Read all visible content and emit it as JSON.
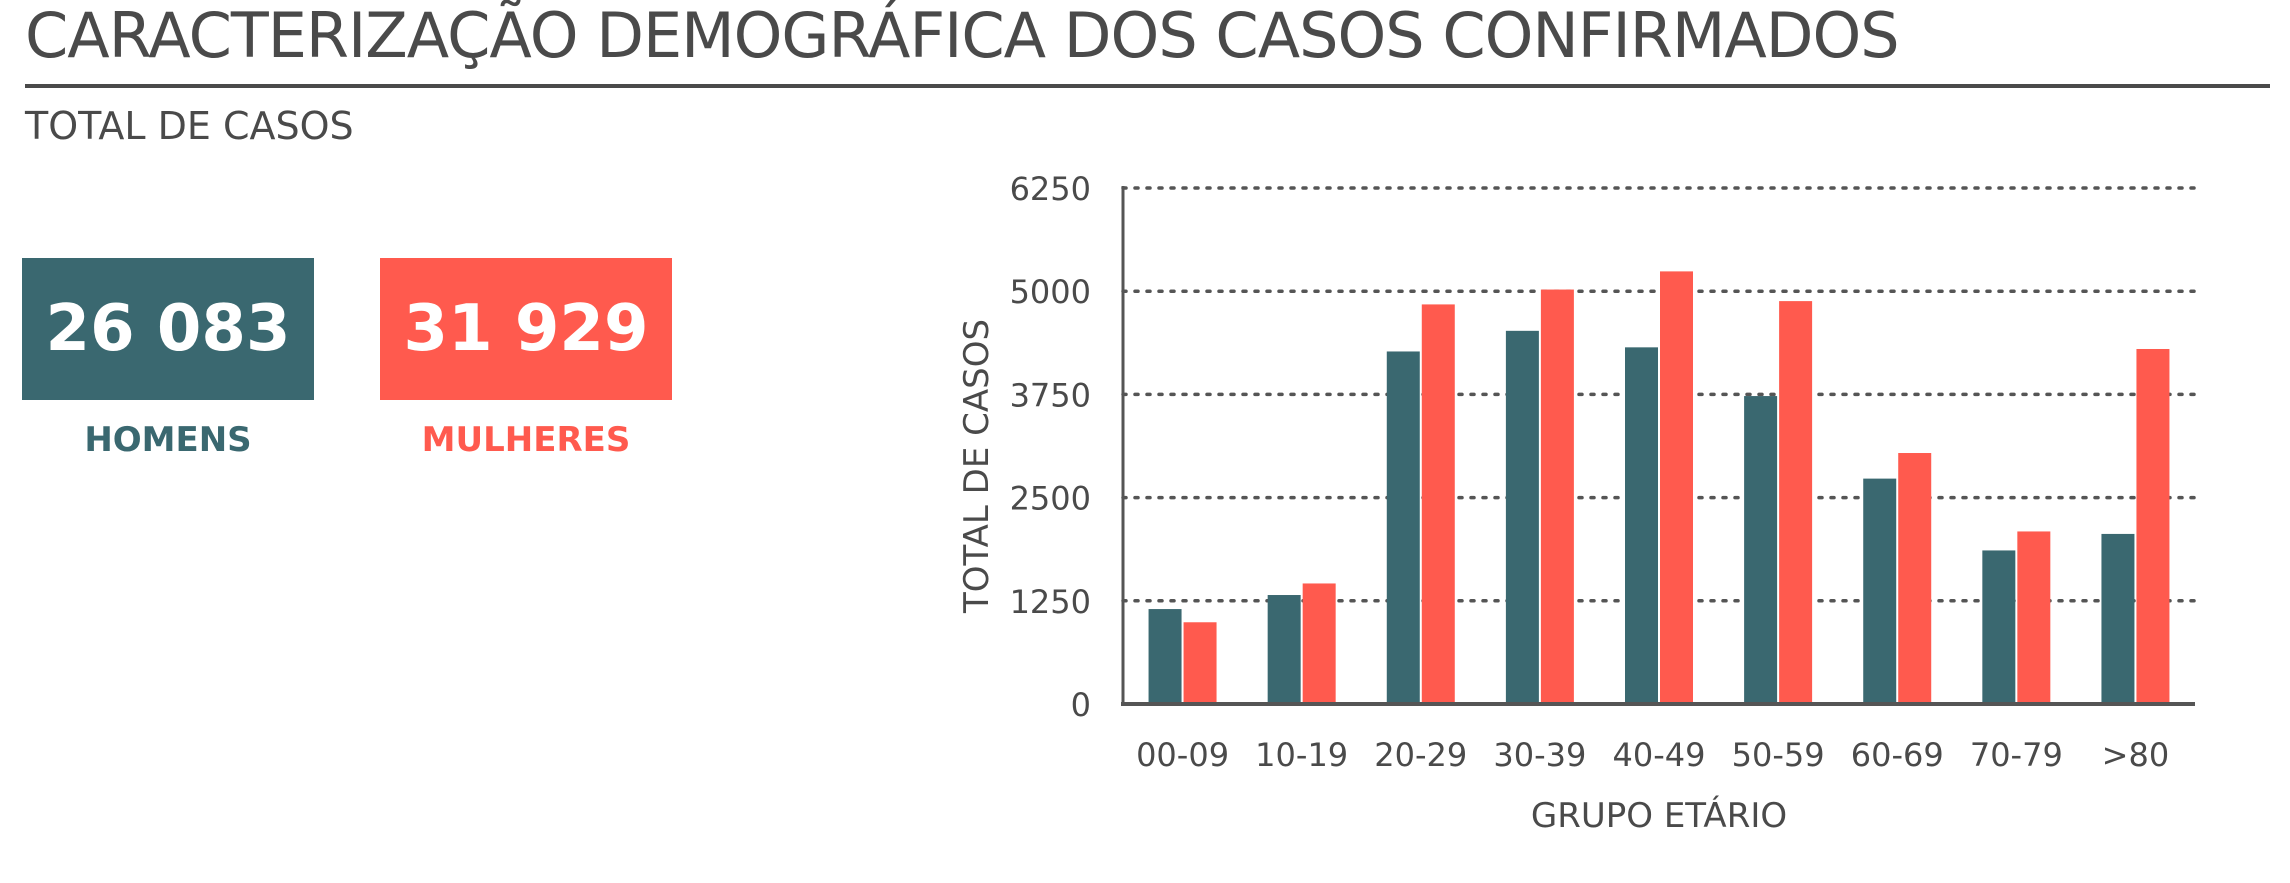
{
  "header": {
    "title": "CARACTERIZAÇÃO DEMOGRÁFICA DOS CASOS CONFIRMADOS",
    "subtitle": "TOTAL DE CASOS"
  },
  "kpis": {
    "men": {
      "value": "26 083",
      "label": "HOMENS",
      "color": "#3a6870"
    },
    "women": {
      "value": "31 929",
      "label": "MULHERES",
      "color": "#ff5a4e"
    }
  },
  "chart_data": {
    "type": "bar",
    "categories": [
      "00-09",
      "10-19",
      "20-29",
      "30-39",
      "40-49",
      "50-59",
      "60-69",
      "70-79",
      ">80"
    ],
    "series": [
      {
        "name": "HOMENS",
        "color": "#3a6870",
        "values": [
          1150,
          1320,
          4270,
          4520,
          4320,
          3730,
          2730,
          1860,
          2060
        ]
      },
      {
        "name": "MULHERES",
        "color": "#ff5a4e",
        "values": [
          990,
          1460,
          4840,
          5020,
          5240,
          4880,
          3040,
          2090,
          4300
        ]
      }
    ],
    "title": "",
    "xlabel": "GRUPO ETÁRIO",
    "ylabel": "TOTAL DE CASOS",
    "ylim": [
      0,
      6250
    ],
    "yticks": [
      0,
      1250,
      2500,
      3750,
      5000,
      6250
    ],
    "ytick_labels": [
      "0",
      "1250",
      "2500",
      "3750",
      "5000",
      "6250"
    ],
    "grid": true,
    "grid_style": "dotted"
  }
}
